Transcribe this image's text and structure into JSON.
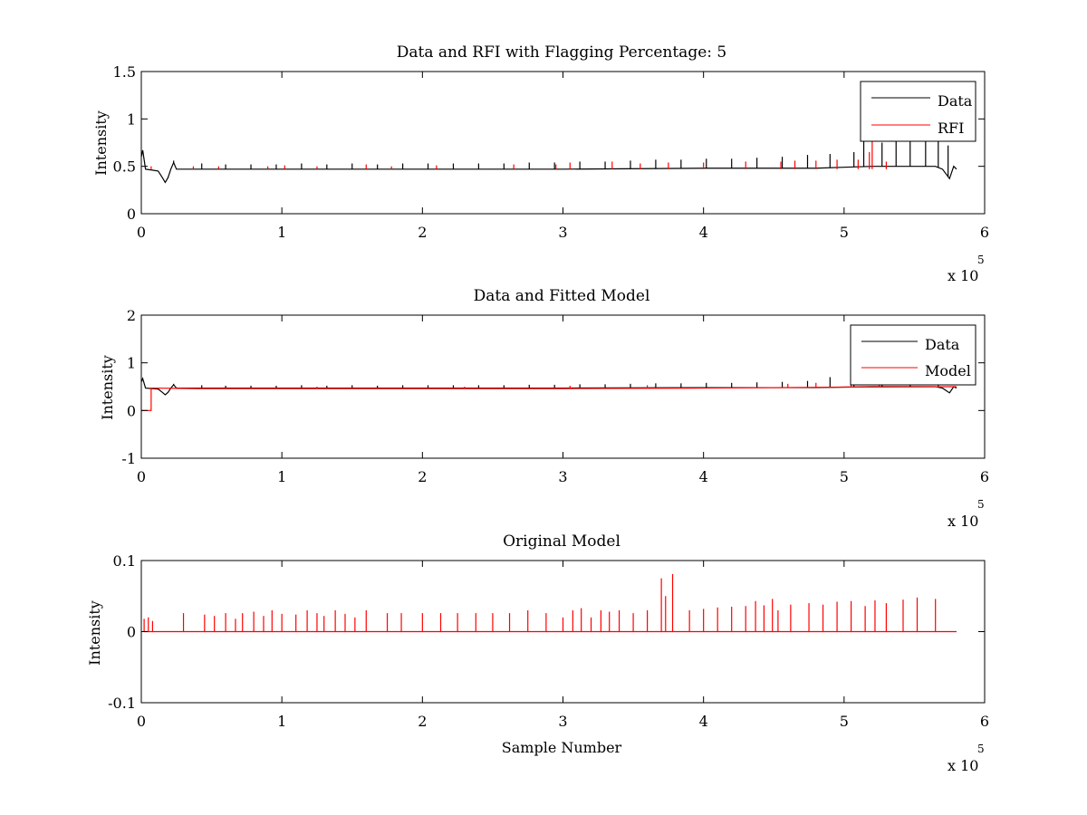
{
  "figure": {
    "background": "#ffffff"
  },
  "colors": {
    "data": "#000000",
    "rfi": "#ff0000",
    "model": "#ff0000",
    "original": "#ff0000"
  },
  "chart_data": [
    {
      "type": "line",
      "title": "Data and RFI with Flagging Percentage: 5",
      "xlabel": "",
      "ylabel": "Intensity",
      "xlim": [
        0,
        6
      ],
      "ylim": [
        0,
        1.5
      ],
      "xticks": [
        0,
        1,
        2,
        3,
        4,
        5,
        6
      ],
      "yticks": [
        0,
        0.5,
        1,
        1.5
      ],
      "xtick_labels": [
        "0",
        "1",
        "2",
        "3",
        "4",
        "5",
        "6"
      ],
      "ytick_labels": [
        "0",
        "0.5",
        "1",
        "1.5"
      ],
      "x_multiplier": "x 10",
      "x_multiplier_exp": "5",
      "legend": {
        "placement": "top-right",
        "entries": [
          "Data",
          "RFI"
        ]
      },
      "grid": false,
      "series": [
        {
          "name": "Data",
          "color": "#000000",
          "baseline": 0.47,
          "x": [
            0,
            0.01,
            0.03,
            0.08,
            0.12,
            0.15,
            0.17,
            0.19,
            0.21,
            0.23,
            0.25,
            0.4,
            1.0,
            2.0,
            3.0,
            4.0,
            4.8,
            5.0,
            5.2,
            5.4,
            5.6,
            5.65,
            5.7,
            5.75,
            5.78,
            5.8
          ],
          "y": [
            0.6,
            0.67,
            0.47,
            0.46,
            0.45,
            0.38,
            0.33,
            0.38,
            0.47,
            0.54,
            0.47,
            0.47,
            0.47,
            0.47,
            0.47,
            0.48,
            0.48,
            0.49,
            0.5,
            0.5,
            0.5,
            0.5,
            0.47,
            0.37,
            0.5,
            0.47
          ],
          "spikes_x": [
            0.23,
            0.43,
            0.6,
            0.78,
            0.96,
            1.14,
            1.32,
            1.5,
            1.68,
            1.86,
            2.04,
            2.22,
            2.4,
            2.58,
            2.76,
            2.94,
            3.12,
            3.3,
            3.48,
            3.66,
            3.84,
            4.02,
            4.2,
            4.38,
            4.56,
            4.74,
            4.9,
            5.07,
            5.14,
            5.27,
            5.37,
            5.47,
            5.58,
            5.67,
            5.74
          ],
          "spikes_y": [
            0.56,
            0.53,
            0.52,
            0.52,
            0.52,
            0.53,
            0.52,
            0.53,
            0.52,
            0.53,
            0.53,
            0.53,
            0.53,
            0.53,
            0.54,
            0.54,
            0.55,
            0.55,
            0.56,
            0.57,
            0.57,
            0.58,
            0.58,
            0.59,
            0.6,
            0.62,
            0.63,
            0.65,
            0.77,
            0.75,
            0.77,
            0.77,
            0.77,
            0.77,
            0.72
          ]
        },
        {
          "name": "RFI",
          "color": "#ff0000",
          "spikes_x": [
            0.07,
            0.37,
            0.55,
            0.9,
            1.02,
            1.25,
            1.6,
            1.78,
            2.1,
            2.65,
            2.95,
            3.05,
            3.35,
            3.55,
            3.75,
            4.0,
            4.3,
            4.55,
            4.65,
            4.8,
            4.95,
            5.1,
            5.18,
            5.2,
            5.3
          ],
          "spikes_y": [
            0.5,
            0.5,
            0.5,
            0.5,
            0.51,
            0.5,
            0.52,
            0.5,
            0.51,
            0.52,
            0.52,
            0.54,
            0.55,
            0.53,
            0.54,
            0.54,
            0.55,
            0.55,
            0.56,
            0.56,
            0.57,
            0.57,
            0.65,
            0.8,
            0.55
          ]
        }
      ]
    },
    {
      "type": "line",
      "title": "Data and Fitted Model",
      "xlabel": "",
      "ylabel": "Intensity",
      "xlim": [
        0,
        6
      ],
      "ylim": [
        -1,
        2
      ],
      "xticks": [
        0,
        1,
        2,
        3,
        4,
        5,
        6
      ],
      "yticks": [
        -1,
        0,
        1,
        2
      ],
      "xtick_labels": [
        "0",
        "1",
        "2",
        "3",
        "4",
        "5",
        "6"
      ],
      "ytick_labels": [
        "-1",
        "0",
        "1",
        "2"
      ],
      "x_multiplier": "x 10",
      "x_multiplier_exp": "5",
      "legend": {
        "placement": "top-right",
        "entries": [
          "Data",
          "Model"
        ]
      },
      "grid": false,
      "series": [
        {
          "name": "Data",
          "color": "#000000",
          "x": [
            0,
            0.01,
            0.03,
            0.08,
            0.12,
            0.15,
            0.17,
            0.19,
            0.21,
            0.23,
            0.25,
            0.4,
            1.0,
            2.0,
            3.0,
            4.0,
            4.8,
            5.0,
            5.2,
            5.4,
            5.6,
            5.65,
            5.7,
            5.75,
            5.78,
            5.8
          ],
          "y": [
            0.6,
            0.67,
            0.47,
            0.46,
            0.45,
            0.38,
            0.33,
            0.38,
            0.47,
            0.54,
            0.47,
            0.47,
            0.47,
            0.47,
            0.47,
            0.48,
            0.48,
            0.49,
            0.5,
            0.5,
            0.5,
            0.5,
            0.47,
            0.37,
            0.5,
            0.47
          ],
          "spikes_x": [
            0.23,
            0.43,
            0.6,
            0.78,
            0.96,
            1.14,
            1.32,
            1.5,
            1.68,
            1.86,
            2.04,
            2.22,
            2.4,
            2.58,
            2.76,
            2.94,
            3.12,
            3.3,
            3.48,
            3.66,
            3.84,
            4.02,
            4.2,
            4.38,
            4.56,
            4.74,
            4.9,
            5.07,
            5.27,
            5.47,
            5.67
          ],
          "spikes_y": [
            0.56,
            0.53,
            0.52,
            0.52,
            0.52,
            0.53,
            0.52,
            0.53,
            0.52,
            0.53,
            0.53,
            0.53,
            0.53,
            0.53,
            0.54,
            0.54,
            0.55,
            0.55,
            0.56,
            0.57,
            0.57,
            0.58,
            0.58,
            0.59,
            0.6,
            0.62,
            0.7,
            0.65,
            0.62,
            0.6,
            0.58
          ]
        },
        {
          "name": "Model",
          "color": "#ff0000",
          "x": [
            0,
            0.07,
            0.07,
            0.08,
            0.4,
            1.0,
            2.0,
            3.0,
            4.0,
            5.0,
            5.8
          ],
          "y": [
            0,
            0,
            0.47,
            0.47,
            0.46,
            0.46,
            0.46,
            0.46,
            0.47,
            0.49,
            0.5
          ],
          "spikes_x": [
            1.25,
            2.3,
            3.05,
            3.6,
            4.6,
            4.8,
            5.05,
            5.25
          ],
          "spikes_y": [
            0.5,
            0.5,
            0.52,
            0.53,
            0.56,
            0.58,
            0.56,
            0.55
          ]
        }
      ]
    },
    {
      "type": "line",
      "title": "Original Model",
      "xlabel": "Sample Number",
      "ylabel": "Intensity",
      "xlim": [
        0,
        6
      ],
      "ylim": [
        -0.1,
        0.1
      ],
      "xticks": [
        0,
        1,
        2,
        3,
        4,
        5,
        6
      ],
      "yticks": [
        -0.1,
        0,
        0.1
      ],
      "xtick_labels": [
        "0",
        "1",
        "2",
        "3",
        "4",
        "5",
        "6"
      ],
      "ytick_labels": [
        "-0.1",
        "0",
        "0.1"
      ],
      "x_multiplier": "x 10",
      "x_multiplier_exp": "5",
      "grid": false,
      "series": [
        {
          "name": "",
          "color": "#ff0000",
          "baseline": 0,
          "spikes_x": [
            0.02,
            0.05,
            0.08,
            0.3,
            0.45,
            0.52,
            0.6,
            0.67,
            0.72,
            0.8,
            0.87,
            0.93,
            1.0,
            1.1,
            1.18,
            1.25,
            1.3,
            1.38,
            1.45,
            1.52,
            1.6,
            1.75,
            1.85,
            2.0,
            2.13,
            2.25,
            2.38,
            2.5,
            2.62,
            2.75,
            2.88,
            3.0,
            3.07,
            3.13,
            3.2,
            3.27,
            3.33,
            3.4,
            3.5,
            3.6,
            3.7,
            3.73,
            3.78,
            3.9,
            4.0,
            4.1,
            4.2,
            4.3,
            4.37,
            4.43,
            4.49,
            4.53,
            4.62,
            4.75,
            4.85,
            4.95,
            5.05,
            5.15,
            5.22,
            5.3,
            5.42,
            5.52,
            5.65
          ],
          "spikes_y": [
            0.018,
            0.02,
            0.015,
            0.026,
            0.024,
            0.022,
            0.026,
            0.018,
            0.026,
            0.028,
            0.022,
            0.03,
            0.025,
            0.024,
            0.03,
            0.026,
            0.022,
            0.03,
            0.025,
            0.02,
            0.03,
            0.026,
            0.026,
            0.026,
            0.026,
            0.026,
            0.026,
            0.026,
            0.026,
            0.03,
            0.026,
            0.02,
            0.03,
            0.033,
            0.02,
            0.03,
            0.028,
            0.03,
            0.026,
            0.03,
            0.075,
            0.05,
            0.081,
            0.03,
            0.032,
            0.034,
            0.035,
            0.036,
            0.043,
            0.037,
            0.046,
            0.03,
            0.038,
            0.04,
            0.038,
            0.042,
            0.043,
            0.036,
            0.044,
            0.04,
            0.045,
            0.048,
            0.046
          ]
        }
      ]
    }
  ]
}
